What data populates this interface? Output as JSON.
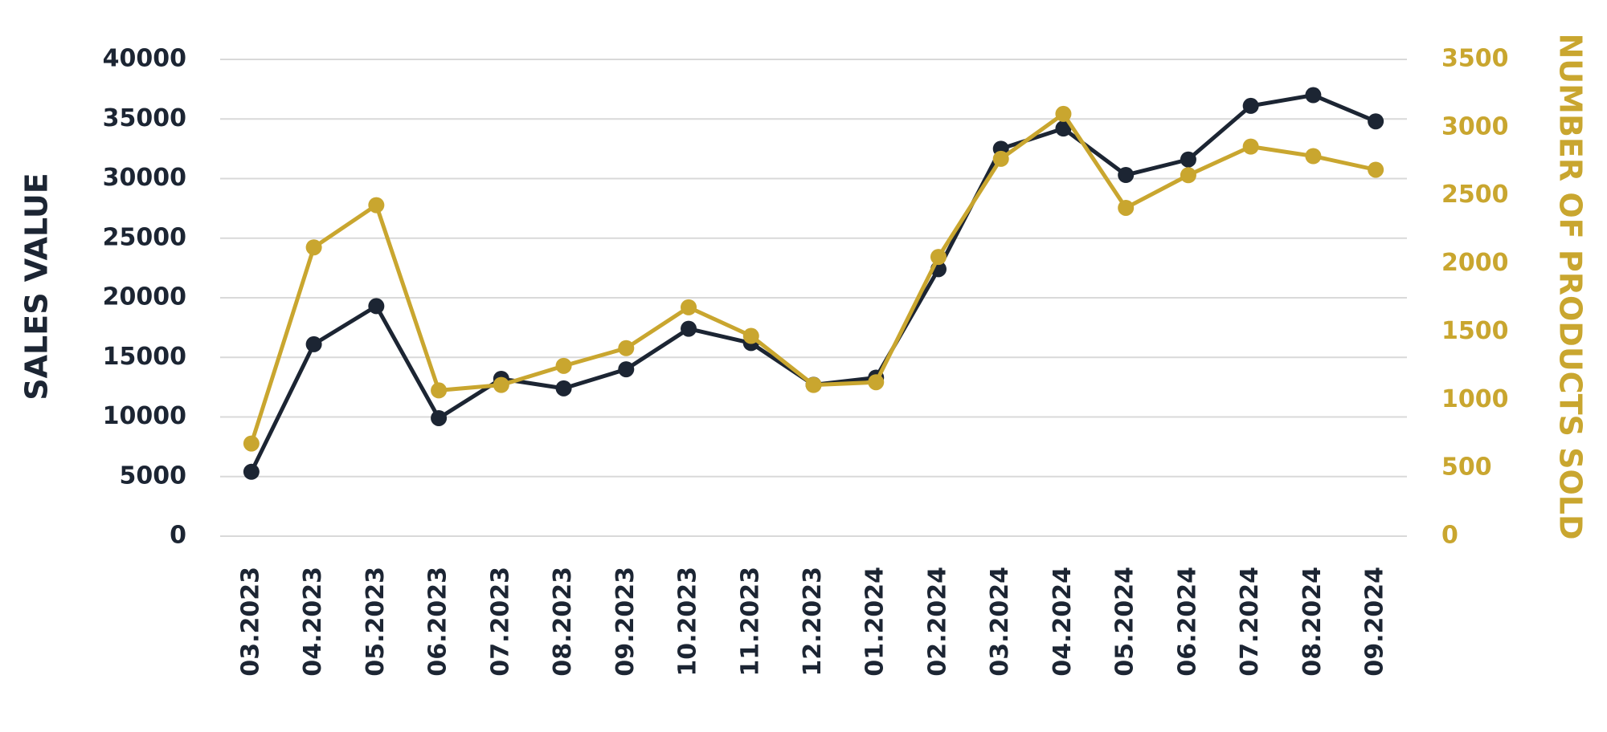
{
  "chart_data": {
    "type": "line",
    "ylabel": "SALES VALUE",
    "y2label": "NUMBER OF PRODUCTS SOLD",
    "categories": [
      "03.2023",
      "04.2023",
      "05.2023",
      "06.2023",
      "07.2023",
      "08.2023",
      "09.2023",
      "10.2023",
      "11.2023",
      "12.2023",
      "01.2024",
      "02.2024",
      "03.2024",
      "04.2024",
      "05.2024",
      "06.2024",
      "07.2024",
      "08.2024",
      "09.2024"
    ],
    "series": [
      {
        "color": "#1c2533",
        "axis": "y",
        "values": [
          5400,
          16100,
          19300,
          9900,
          13200,
          12400,
          14000,
          17400,
          16200,
          12700,
          13300,
          22400,
          32500,
          34200,
          30300,
          31600,
          36100,
          37000,
          34800
        ]
      },
      {
        "color": "#c9a62f",
        "axis": "y2",
        "values": [
          680,
          2120,
          2430,
          1070,
          1110,
          1250,
          1380,
          1680,
          1470,
          1110,
          1130,
          2050,
          2770,
          3100,
          2410,
          2650,
          2860,
          2790,
          2690
        ]
      }
    ],
    "ylim": [
      0,
      40000
    ],
    "yticks": [
      0,
      5000,
      10000,
      15000,
      20000,
      25000,
      30000,
      35000,
      40000
    ],
    "y2lim": [
      0,
      3500
    ],
    "y2ticks": [
      0,
      500,
      1000,
      1500,
      2000,
      2500,
      3000,
      3500
    ],
    "grid": true
  }
}
